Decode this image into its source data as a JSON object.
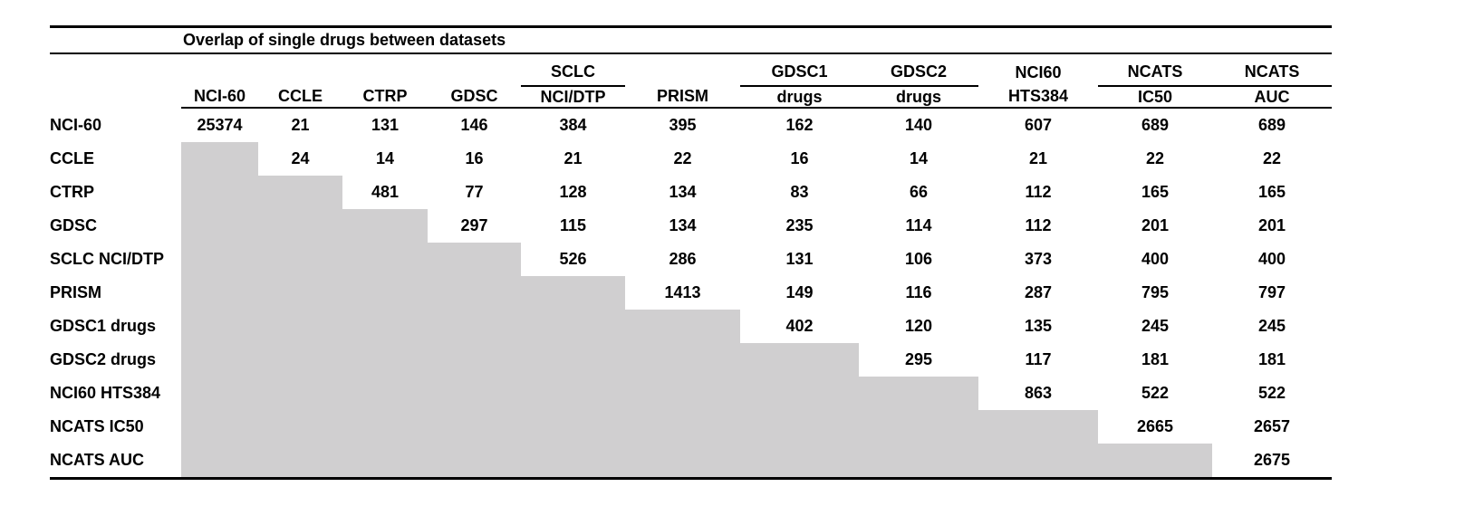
{
  "table": {
    "title": "Overlap of single drugs between datasets",
    "shaded_color": "#d0cfd0",
    "column_groups": {
      "sclc": "SCLC",
      "gdsc1": "GDSC1",
      "gdsc2": "GDSC2",
      "nci60": "NCI60",
      "ncats_ic50": "NCATS",
      "ncats_auc": "NCATS"
    },
    "column_headers": [
      "NCI-60",
      "CCLE",
      "CTRP",
      "GDSC",
      "NCI/DTP",
      "PRISM",
      "drugs",
      "drugs",
      "HTS384",
      "IC50",
      "AUC"
    ],
    "rows": [
      {
        "label": "NCI-60",
        "values": [
          25374,
          21,
          131,
          146,
          384,
          395,
          162,
          140,
          607,
          689,
          689
        ]
      },
      {
        "label": "CCLE",
        "values": [
          null,
          24,
          14,
          16,
          21,
          22,
          16,
          14,
          21,
          22,
          22
        ]
      },
      {
        "label": "CTRP",
        "values": [
          null,
          null,
          481,
          77,
          128,
          134,
          83,
          66,
          112,
          165,
          165
        ]
      },
      {
        "label": "GDSC",
        "values": [
          null,
          null,
          null,
          297,
          115,
          134,
          235,
          114,
          112,
          201,
          201
        ]
      },
      {
        "label": "SCLC NCI/DTP",
        "values": [
          null,
          null,
          null,
          null,
          526,
          286,
          131,
          106,
          373,
          400,
          400
        ]
      },
      {
        "label": "PRISM",
        "values": [
          null,
          null,
          null,
          null,
          null,
          1413,
          149,
          116,
          287,
          795,
          797
        ]
      },
      {
        "label": "GDSC1 drugs",
        "values": [
          null,
          null,
          null,
          null,
          null,
          null,
          402,
          120,
          135,
          245,
          245
        ]
      },
      {
        "label": "GDSC2 drugs",
        "values": [
          null,
          null,
          null,
          null,
          null,
          null,
          null,
          295,
          117,
          181,
          181
        ]
      },
      {
        "label": "NCI60 HTS384",
        "values": [
          null,
          null,
          null,
          null,
          null,
          null,
          null,
          null,
          863,
          522,
          522
        ]
      },
      {
        "label": "NCATS IC50",
        "values": [
          null,
          null,
          null,
          null,
          null,
          null,
          null,
          null,
          null,
          2665,
          2657
        ]
      },
      {
        "label": "NCATS AUC",
        "values": [
          null,
          null,
          null,
          null,
          null,
          null,
          null,
          null,
          null,
          null,
          2675
        ]
      }
    ]
  }
}
